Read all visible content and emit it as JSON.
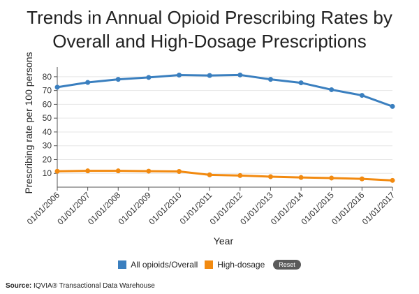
{
  "title": {
    "line1": "Trends in Annual Opioid Prescribing Rates by",
    "line2": "Overall and High-Dosage Prescriptions"
  },
  "chart_data": {
    "type": "line",
    "title": "Trends in Annual Opioid Prescribing Rates by Overall and High-Dosage Prescriptions",
    "xlabel": "Year",
    "ylabel": "Prescribing rate per 100 persons",
    "ylim": [
      0,
      85
    ],
    "yticks": [
      10,
      20,
      30,
      40,
      50,
      60,
      70,
      80
    ],
    "grid": true,
    "legend_position": "bottom",
    "categories": [
      "01/01/2006",
      "01/01/2007",
      "01/01/2008",
      "01/01/2009",
      "01/01/2010",
      "01/01/2011",
      "01/01/2012",
      "01/01/2013",
      "01/01/2014",
      "01/01/2015",
      "01/01/2016",
      "01/01/2017"
    ],
    "series": [
      {
        "name": "All opioids/Overall",
        "color": "#3a7fbf",
        "values": [
          72.4,
          75.9,
          78.1,
          79.5,
          81.2,
          80.9,
          81.3,
          78.1,
          75.6,
          70.6,
          66.5,
          58.5
        ]
      },
      {
        "name": "High-dosage",
        "color": "#f28a10",
        "values": [
          11.5,
          11.8,
          11.8,
          11.6,
          11.4,
          8.9,
          8.4,
          7.6,
          7.0,
          6.6,
          6.0,
          4.9
        ]
      }
    ]
  },
  "legend": {
    "items": [
      {
        "label": "All opioids/Overall",
        "color": "#3a7fbf"
      },
      {
        "label": "High-dosage",
        "color": "#f28a10"
      }
    ],
    "reset_label": "Reset"
  },
  "source": {
    "label": "Source:",
    "text": "IQVIA® Transactional Data Warehouse"
  }
}
